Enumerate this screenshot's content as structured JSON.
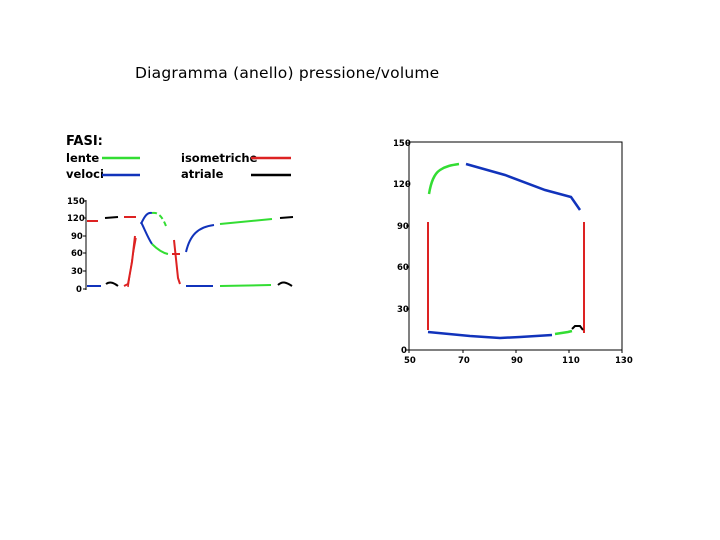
{
  "title": "Diagramma (anello) pressione/volume",
  "legend": {
    "heading": "FASI:",
    "items": [
      {
        "label": "lente",
        "color": "#33dd33"
      },
      {
        "label": "veloci",
        "color": "#1133bb"
      },
      {
        "label": "isometriche",
        "color": "#dd2222"
      },
      {
        "label": "atriale",
        "color": "#000000"
      }
    ]
  },
  "colors": {
    "lente": "#33dd33",
    "veloci": "#1133bb",
    "isometriche": "#dd2222",
    "atriale": "#000000"
  },
  "left_chart": {
    "y_ticks": [
      "150",
      "120",
      "90",
      "60",
      "30",
      "0"
    ]
  },
  "right_chart": {
    "y_ticks": [
      "150",
      "120",
      "90",
      "60",
      "30",
      "0"
    ],
    "x_ticks": [
      "50",
      "70",
      "90",
      "110",
      "130"
    ]
  }
}
